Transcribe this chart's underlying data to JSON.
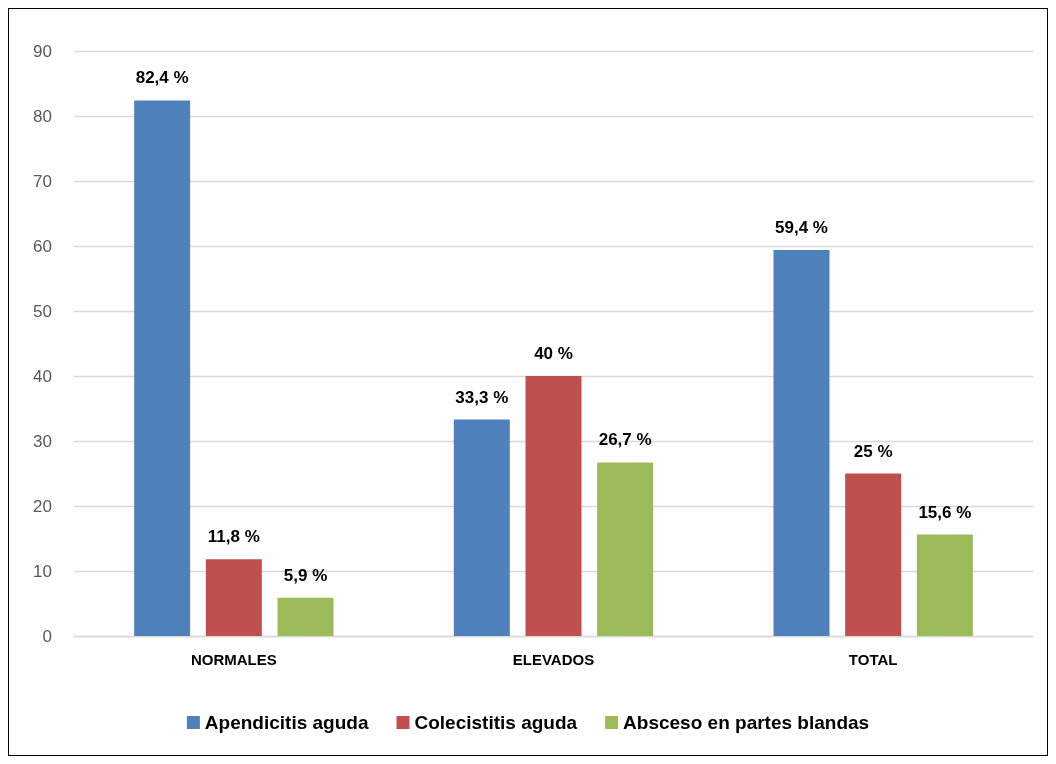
{
  "chart_data": {
    "type": "bar",
    "categories": [
      "NORMALES",
      "ELEVADOS",
      "TOTAL"
    ],
    "series": [
      {
        "name": "Apendicitis aguda",
        "color": "#4f81bd",
        "values": [
          82.4,
          33.3,
          59.4
        ],
        "value_labels": [
          "82,4 %",
          "33,3 %",
          "59,4 %"
        ]
      },
      {
        "name": "Colecistitis aguda",
        "color": "#c0504d",
        "values": [
          11.8,
          40,
          25
        ],
        "value_labels": [
          "11,8 %",
          "40 %",
          "25 %"
        ]
      },
      {
        "name": "Absceso en partes blandas",
        "color": "#9bbb59",
        "values": [
          5.9,
          26.7,
          15.6
        ],
        "value_labels": [
          "5,9 %",
          "26,7 %",
          "15,6 %"
        ]
      }
    ],
    "ylim": [
      0,
      90
    ],
    "yticks": [
      0,
      10,
      20,
      30,
      40,
      50,
      60,
      70,
      80,
      90
    ],
    "grid": "y",
    "legend": "bottom"
  }
}
